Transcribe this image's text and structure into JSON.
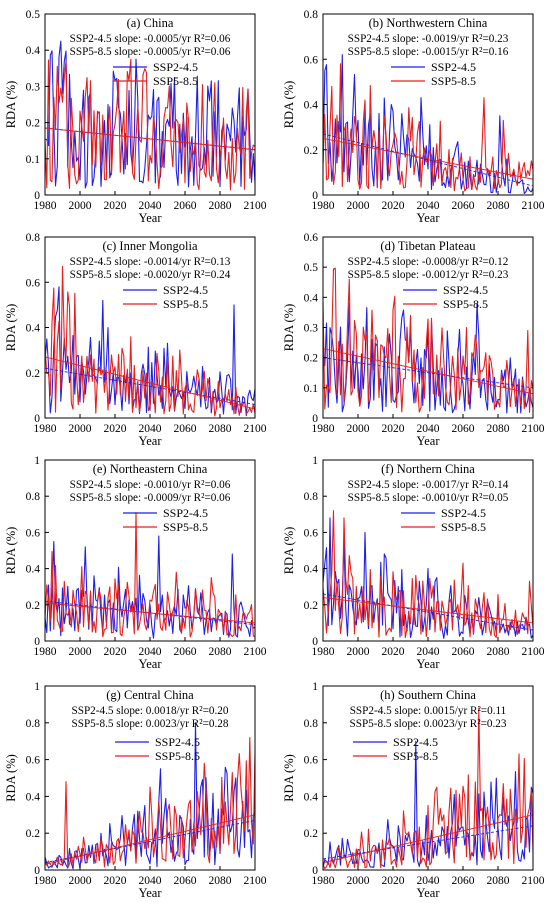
{
  "series_colors": {
    "SSP2-4.5": "#1f1fe6",
    "SSP5-8.5": "#e61f1f"
  },
  "chart_data": [
    {
      "type": "line",
      "title": "(a) China",
      "xlabel": "Year",
      "ylabel": "RDA (%)",
      "xlim": [
        1980,
        2100
      ],
      "ylim": [
        0,
        0.5
      ],
      "xticks": [
        1980,
        2000,
        2020,
        2040,
        2060,
        2080,
        2100
      ],
      "yticks": [
        0,
        0.1,
        0.2,
        0.3,
        0.4,
        0.5
      ],
      "yticks_labels": [
        "0",
        "0.1",
        "0.2",
        "0.3",
        "0.4",
        "0.5"
      ],
      "annotations": [
        "SSP2-4.5 slope: -0.0005/yr  R²=0.06",
        "SSP5-8.5 slope: -0.0005/yr  R²=0.06"
      ],
      "series": [
        {
          "name": "SSP2-4.5",
          "trend": [
            0.185,
            0.125
          ],
          "peaks": [
            [
              1991,
              0.37
            ],
            [
              1990,
              0.28
            ],
            [
              2016,
              0.25
            ],
            [
              2045,
              0.27
            ],
            [
              2074,
              0.26
            ],
            [
              2087,
              0.24
            ]
          ]
        },
        {
          "name": "SSP5-8.5",
          "trend": [
            0.185,
            0.125
          ],
          "peaks": [
            [
              1992,
              0.37
            ],
            [
              1985,
              0.27
            ],
            [
              2050,
              0.24
            ],
            [
              2077,
              0.31
            ],
            [
              2096,
              0.29
            ]
          ]
        }
      ]
    },
    {
      "type": "line",
      "title": "(b) Northwestern China",
      "xlabel": "Year",
      "ylabel": "RDA (%)",
      "xlim": [
        1980,
        2100
      ],
      "ylim": [
        0,
        0.8
      ],
      "xticks": [
        1980,
        2000,
        2020,
        2040,
        2060,
        2080,
        2100
      ],
      "yticks": [
        0,
        0.2,
        0.4,
        0.6,
        0.8
      ],
      "yticks_labels": [
        "0",
        "0.2",
        "0.4",
        "0.6",
        "0.8"
      ],
      "annotations": [
        "SSP2-4.5 slope: -0.0019/yr  R²=0.23",
        "SSP5-8.5 slope: -0.0015/yr  R²=0.16"
      ],
      "series": [
        {
          "name": "SSP2-4.5",
          "trend": [
            0.27,
            0.04
          ],
          "peaks": [
            [
              1981,
              0.55
            ],
            [
              1991,
              0.62
            ],
            [
              2036,
              0.43
            ],
            [
              2081,
              0.35
            ]
          ]
        },
        {
          "name": "SSP5-8.5",
          "trend": [
            0.25,
            0.07
          ],
          "peaks": [
            [
              1990,
              0.58
            ],
            [
              1985,
              0.48
            ],
            [
              2072,
              0.43
            ],
            [
              2083,
              0.33
            ]
          ]
        }
      ]
    },
    {
      "type": "line",
      "title": "(c) Inner Mongolia",
      "xlabel": "Year",
      "ylabel": "RDA (%)",
      "xlim": [
        1980,
        2100
      ],
      "ylim": [
        0,
        0.8
      ],
      "xticks": [
        1980,
        2000,
        2020,
        2040,
        2060,
        2080,
        2100
      ],
      "yticks": [
        0,
        0.2,
        0.4,
        0.6,
        0.8
      ],
      "yticks_labels": [
        "0",
        "0.2",
        "0.4",
        "0.6",
        "0.8"
      ],
      "annotations": [
        "SSP2-4.5 slope: -0.0014/yr  R²=0.13",
        "SSP5-8.5 slope: -0.0020/yr  R²=0.24"
      ],
      "series": [
        {
          "name": "SSP2-4.5",
          "trend": [
            0.22,
            0.06
          ],
          "peaks": [
            [
              1988,
              0.58
            ],
            [
              2013,
              0.52
            ],
            [
              2088,
              0.5
            ],
            [
              2050,
              0.33
            ]
          ]
        },
        {
          "name": "SSP5-8.5",
          "trend": [
            0.27,
            0.04
          ],
          "peaks": [
            [
              1990,
              0.67
            ],
            [
              1984,
              0.42
            ],
            [
              2008,
              0.26
            ],
            [
              2057,
              0.3
            ]
          ]
        }
      ]
    },
    {
      "type": "line",
      "title": "(d) Tibetan Plateau",
      "xlabel": "Year",
      "ylabel": "RDA (%)",
      "xlim": [
        1980,
        2100
      ],
      "ylim": [
        0,
        0.6
      ],
      "xticks": [
        1980,
        2000,
        2020,
        2040,
        2060,
        2080,
        2100
      ],
      "yticks": [
        0,
        0.1,
        0.2,
        0.3,
        0.4,
        0.5,
        0.6
      ],
      "yticks_labels": [
        "0",
        "0.1",
        "0.2",
        "0.3",
        "0.4",
        "0.5",
        "0.6"
      ],
      "annotations": [
        "SSP2-4.5 slope: -0.0008/yr  R²=0.12",
        "SSP5-8.5 slope: -0.0012/yr  R²=0.23"
      ],
      "series": [
        {
          "name": "SSP2-4.5",
          "trend": [
            0.2,
            0.1
          ],
          "peaks": [
            [
              1995,
              0.38
            ],
            [
              2068,
              0.38
            ],
            [
              2042,
              0.32
            ]
          ]
        },
        {
          "name": "SSP5-8.5",
          "trend": [
            0.23,
            0.08
          ],
          "peaks": [
            [
              1995,
              0.46
            ],
            [
              2030,
              0.34
            ],
            [
              2062,
              0.3
            ],
            [
              2097,
              0.29
            ]
          ]
        }
      ]
    },
    {
      "type": "line",
      "title": "(e) Northeastern China",
      "xlabel": "Year",
      "ylabel": "RDA (%)",
      "xlim": [
        1980,
        2100
      ],
      "ylim": [
        0,
        1
      ],
      "xticks": [
        1980,
        2000,
        2020,
        2040,
        2060,
        2080,
        2100
      ],
      "yticks": [
        0,
        0.2,
        0.4,
        0.6,
        0.8,
        1
      ],
      "yticks_labels": [
        "0",
        "0.2",
        "0.4",
        "0.6",
        "0.8",
        "1"
      ],
      "annotations": [
        "SSP2-4.5 slope: -0.0010/yr  R²=0.06",
        "SSP5-8.5 slope: -0.0009/yr  R²=0.06"
      ],
      "series": [
        {
          "name": "SSP2-4.5",
          "trend": [
            0.22,
            0.09
          ],
          "peaks": [
            [
              1985,
              0.55
            ],
            [
              2045,
              0.58
            ],
            [
              2003,
              0.52
            ],
            [
              2087,
              0.48
            ]
          ]
        },
        {
          "name": "SSP5-8.5",
          "trend": [
            0.21,
            0.1
          ],
          "peaks": [
            [
              2032,
              0.71
            ],
            [
              2055,
              0.38
            ],
            [
              2075,
              0.35
            ]
          ]
        }
      ]
    },
    {
      "type": "line",
      "title": "(f) Northern China",
      "xlabel": "Year",
      "ylabel": "RDA (%)",
      "xlim": [
        1980,
        2100
      ],
      "ylim": [
        0,
        1
      ],
      "xticks": [
        1980,
        2000,
        2020,
        2040,
        2060,
        2080,
        2100
      ],
      "yticks": [
        0,
        0.2,
        0.4,
        0.6,
        0.8,
        1
      ],
      "yticks_labels": [
        "0",
        "0.2",
        "0.4",
        "0.6",
        "0.8",
        "1"
      ],
      "annotations": [
        "SSP2-4.5 slope: -0.0017/yr  R²=0.14",
        "SSP5-8.5 slope: -0.0010/yr  R²=0.05"
      ],
      "series": [
        {
          "name": "SSP2-4.5",
          "trend": [
            0.26,
            0.06
          ],
          "peaks": [
            [
              1984,
              0.68
            ],
            [
              2004,
              0.6
            ],
            [
              2040,
              0.4
            ]
          ]
        },
        {
          "name": "SSP5-8.5",
          "trend": [
            0.24,
            0.1
          ],
          "peaks": [
            [
              1986,
              0.72
            ],
            [
              1992,
              0.68
            ],
            [
              2060,
              0.43
            ],
            [
              2098,
              0.33
            ]
          ]
        }
      ]
    },
    {
      "type": "line",
      "title": "(g) Central China",
      "xlabel": "Year",
      "ylabel": "RDA (%)",
      "xlim": [
        1980,
        2100
      ],
      "ylim": [
        0,
        1
      ],
      "xticks": [
        1980,
        2000,
        2020,
        2040,
        2060,
        2080,
        2100
      ],
      "yticks": [
        0,
        0.2,
        0.4,
        0.6,
        0.8,
        1
      ],
      "yticks_labels": [
        "0",
        "0.2",
        "0.4",
        "0.6",
        "0.8",
        "1"
      ],
      "annotations": [
        "SSP2-4.5 slope: 0.0018/yr  R²=0.20",
        "SSP5-8.5 slope: 0.0023/yr  R²=0.28"
      ],
      "series": [
        {
          "name": "SSP2-4.5",
          "trend": [
            0.04,
            0.27
          ],
          "peaks": [
            [
              2066,
              0.8
            ],
            [
              2046,
              0.55
            ],
            [
              2089,
              0.5
            ]
          ]
        },
        {
          "name": "SSP5-8.5",
          "trend": [
            0.03,
            0.3
          ],
          "peaks": [
            [
              2097,
              0.72
            ],
            [
              2071,
              0.58
            ],
            [
              2040,
              0.45
            ],
            [
              1992,
              0.48
            ]
          ]
        }
      ]
    },
    {
      "type": "line",
      "title": "(h) Southern China",
      "xlabel": "Year",
      "ylabel": "RDA (%)",
      "xlim": [
        1980,
        2100
      ],
      "ylim": [
        0,
        1
      ],
      "xticks": [
        1980,
        2000,
        2020,
        2040,
        2060,
        2080,
        2100
      ],
      "yticks": [
        0,
        0.2,
        0.4,
        0.6,
        0.8,
        1
      ],
      "yticks_labels": [
        "0",
        "0.2",
        "0.4",
        "0.6",
        "0.8",
        "1"
      ],
      "annotations": [
        "SSP2-4.5 slope: 0.0015/yr  R²=0.11",
        "SSP5-8.5 slope: 0.0023/yr  R²=0.23"
      ],
      "series": [
        {
          "name": "SSP2-4.5",
          "trend": [
            0.06,
            0.24
          ],
          "peaks": [
            [
              2033,
              0.7
            ],
            [
              2079,
              0.5
            ],
            [
              2099,
              0.45
            ]
          ]
        },
        {
          "name": "SSP5-8.5",
          "trend": [
            0.04,
            0.3
          ],
          "peaks": [
            [
              2069,
              0.88
            ],
            [
              2092,
              0.63
            ],
            [
              2045,
              0.45
            ]
          ]
        }
      ]
    }
  ]
}
